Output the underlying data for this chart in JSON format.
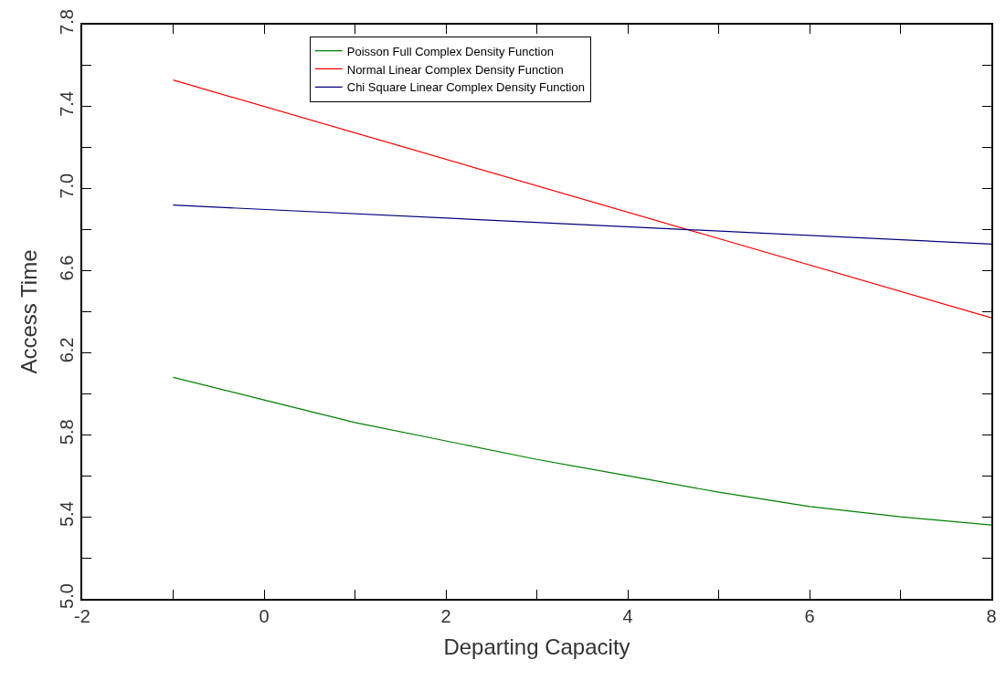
{
  "chart_data": {
    "type": "line",
    "xlabel": "Departing Capacity",
    "ylabel": "Access Time",
    "xlim": [
      -2,
      8
    ],
    "ylim": [
      5.0,
      7.8
    ],
    "xticks": [
      -2,
      {
        "value": -1,
        "label": null
      },
      0,
      {
        "value": 1,
        "label": null
      },
      2,
      {
        "value": 3,
        "label": null
      },
      4,
      {
        "value": 5,
        "label": null
      },
      6,
      {
        "value": 7,
        "label": null
      },
      8
    ],
    "yticks": [
      {
        "value": 5.0,
        "label": "5.0"
      },
      {
        "value": 5.2,
        "label": null
      },
      5.4,
      {
        "value": 5.6,
        "label": null
      },
      5.8,
      {
        "value": 6.0,
        "label": null
      },
      6.2,
      {
        "value": 6.4,
        "label": null
      },
      6.6,
      {
        "value": 6.8,
        "label": null
      },
      {
        "value": 7.0,
        "label": "7.0"
      },
      {
        "value": 7.2,
        "label": null
      },
      7.4,
      {
        "value": 7.6,
        "label": null
      },
      7.8
    ],
    "legend": "top",
    "line_style": "solid",
    "marker": "none",
    "series": [
      {
        "name": "Poisson Full Complex Density Function",
        "color": "#008000",
        "x": [
          -1.0,
          0,
          1,
          2,
          3,
          4,
          5,
          6,
          7,
          8
        ],
        "values": [
          6.08,
          5.97,
          5.86,
          5.77,
          5.68,
          5.6,
          5.52,
          5.45,
          5.4,
          5.36
        ]
      },
      {
        "name": "Normal Linear Complex Density Function",
        "color": "#ff0000",
        "x": [
          -1.0,
          8
        ],
        "values": [
          7.53,
          6.37
        ]
      },
      {
        "name": "Chi Square Linear Complex Density Function",
        "color": "#000080",
        "x": [
          -1.0,
          8
        ],
        "values": [
          6.92,
          6.73
        ]
      }
    ]
  }
}
